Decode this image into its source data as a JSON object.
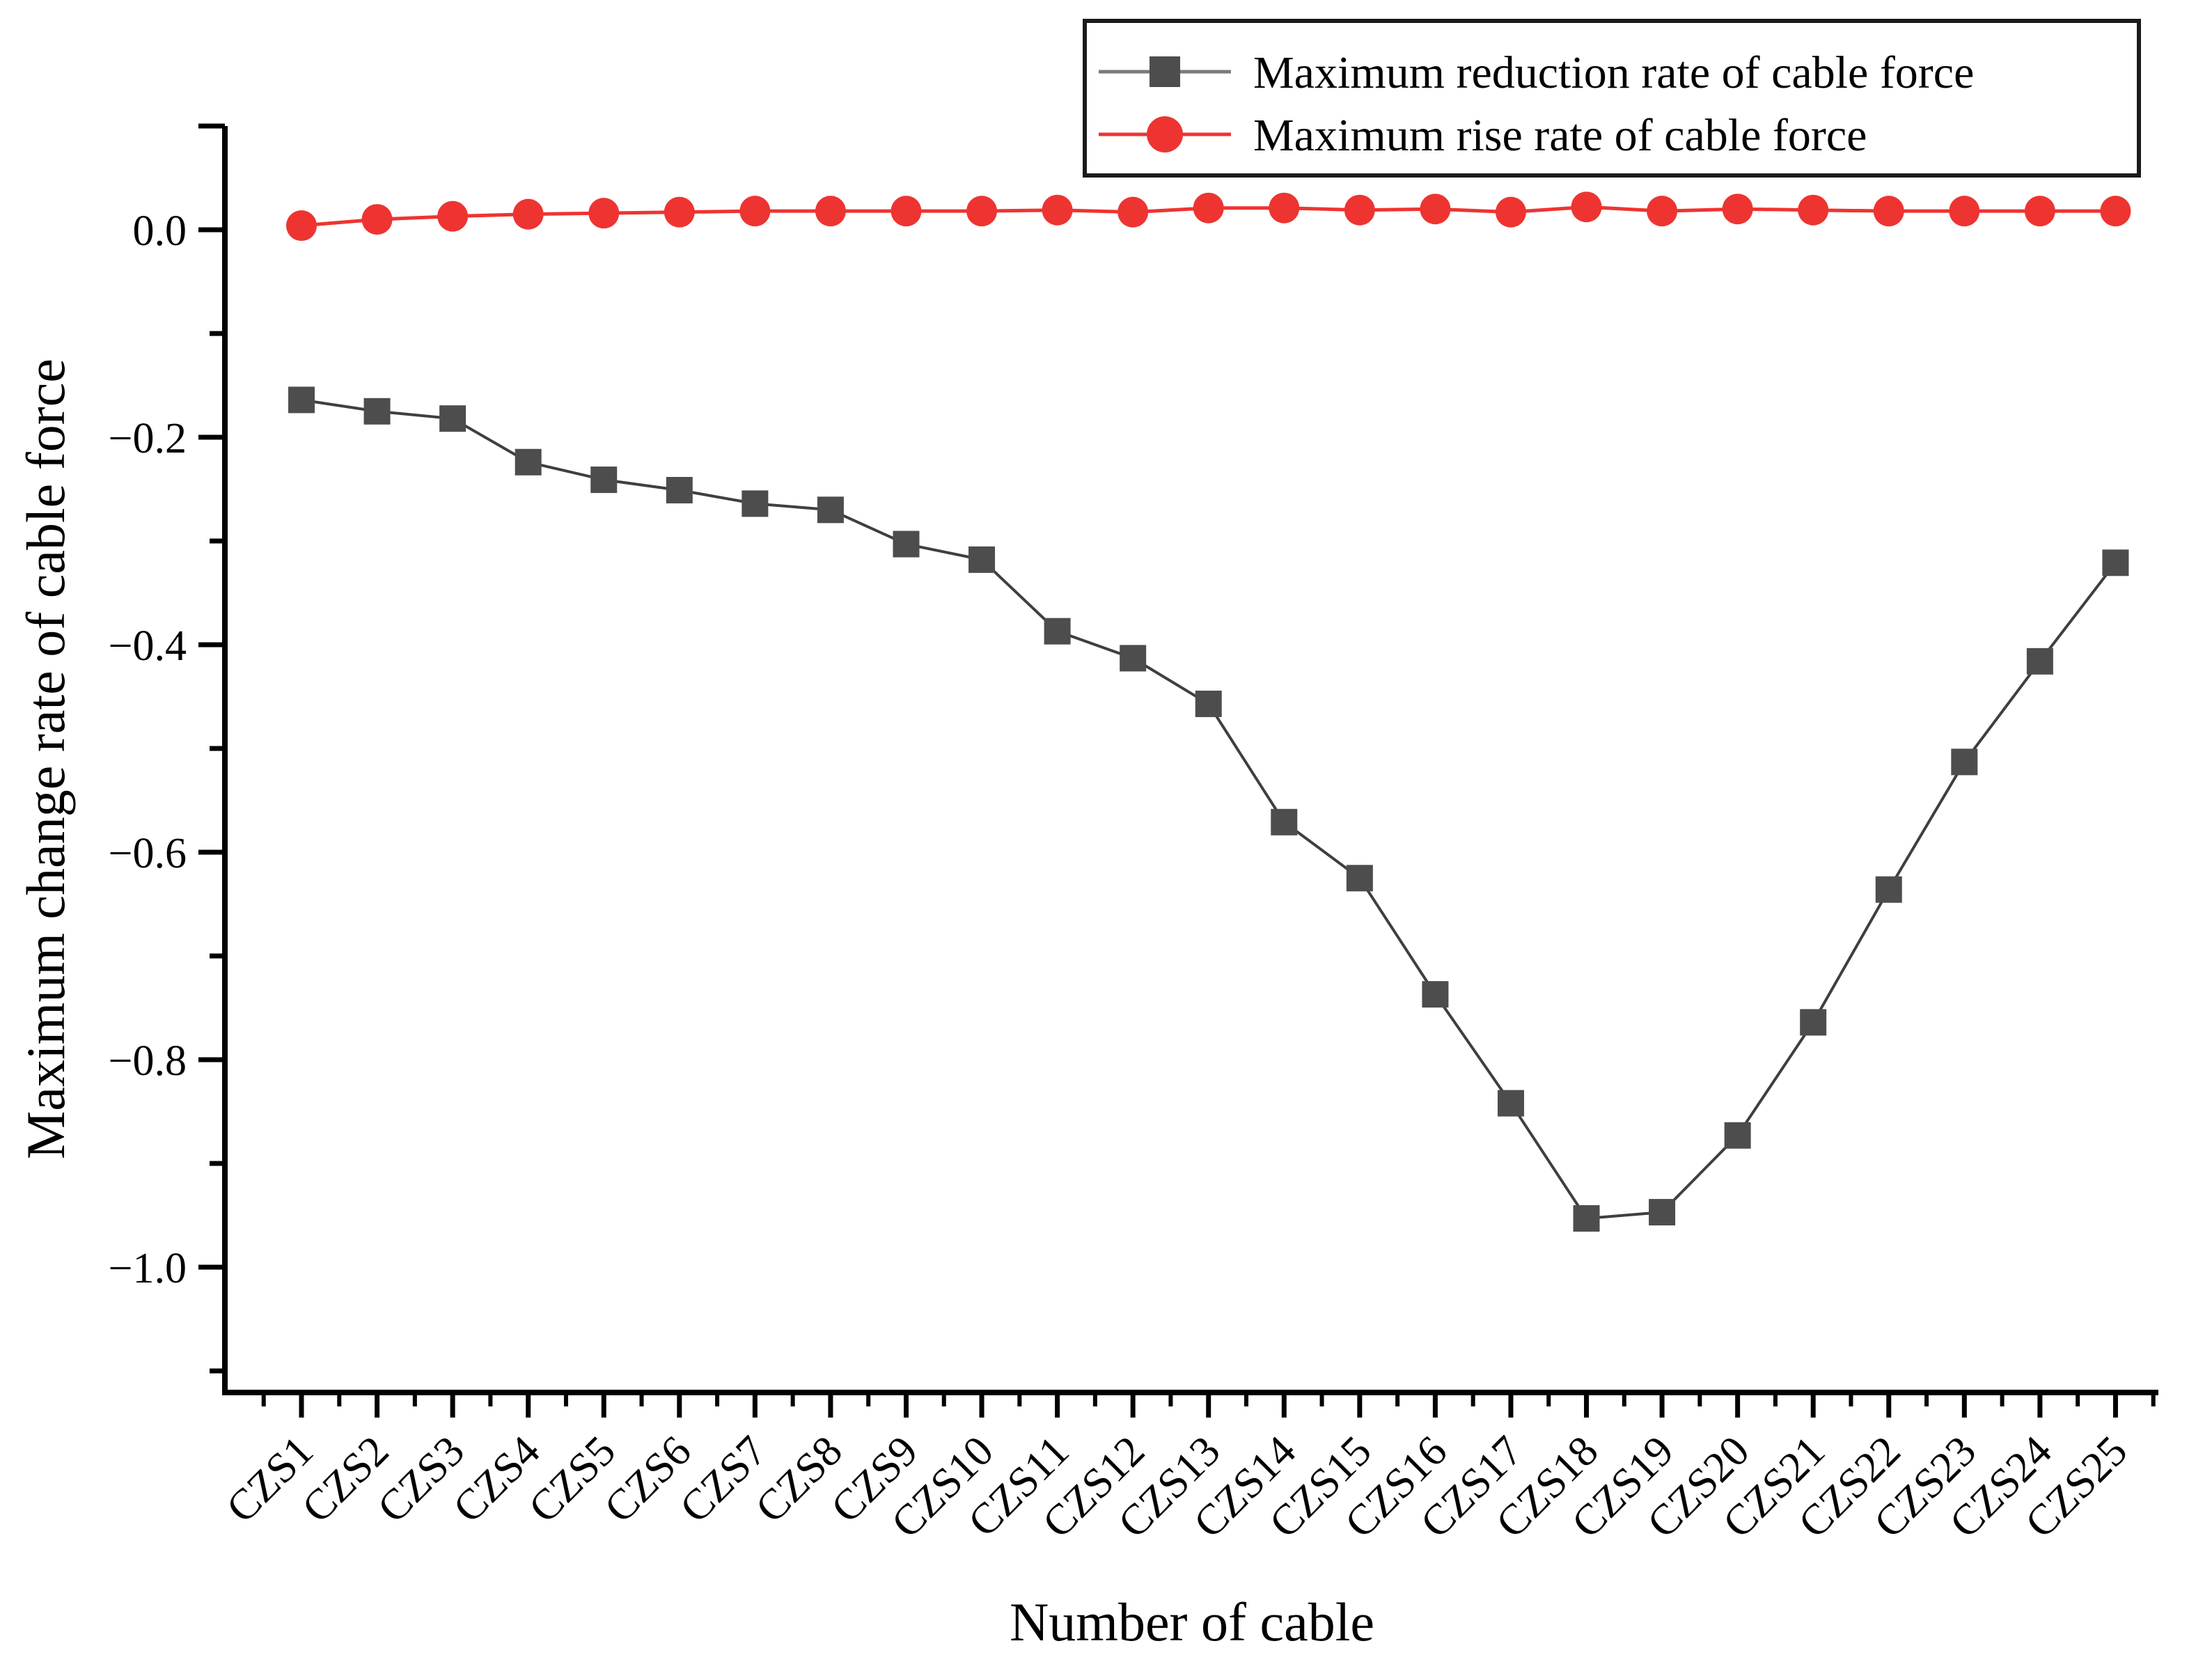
{
  "chart_data": {
    "type": "line",
    "title": "",
    "xlabel": "Number of cable",
    "ylabel": "Maximum change rate of cable force",
    "grid": false,
    "legend_position": "top-right",
    "categories": [
      "CZS1",
      "CZS2",
      "CZS3",
      "CZS4",
      "CZS5",
      "CZS6",
      "CZS7",
      "CZS8",
      "CZS9",
      "CZS10",
      "CZS11",
      "CZS12",
      "CZS13",
      "CZS14",
      "CZS15",
      "CZS16",
      "CZS17",
      "CZS18",
      "CZS19",
      "CZS20",
      "CZS21",
      "CZS22",
      "CZS23",
      "CZS24",
      "CZS25"
    ],
    "y_axis": {
      "min": -1.12,
      "max": 0.11,
      "major_step": 0.2,
      "minor_step": 0.1,
      "ticks": [
        {
          "v": 0,
          "t": "0.0"
        },
        {
          "v": -0.2,
          "t": "−0.2"
        },
        {
          "v": -0.4,
          "t": "−0.4"
        },
        {
          "v": -0.6,
          "t": "−0.6"
        },
        {
          "v": -0.8,
          "t": "−0.8"
        },
        {
          "v": -1.0,
          "t": "−1.0"
        }
      ]
    },
    "series": [
      {
        "name": "Maximum reduction rate of cable force",
        "marker": "square",
        "marker_color": "#4d4d4d",
        "line_color": "#3f3f3f",
        "values": [
          -0.164,
          -0.175,
          -0.182,
          -0.224,
          -0.241,
          -0.251,
          -0.264,
          -0.27,
          -0.303,
          -0.318,
          -0.387,
          -0.413,
          -0.457,
          -0.571,
          -0.625,
          -0.737,
          -0.842,
          -0.953,
          -0.947,
          -0.873,
          -0.764,
          -0.636,
          -0.513,
          -0.416,
          -0.321
        ]
      },
      {
        "name": "Maximum rise rate of cable force",
        "marker": "circle",
        "marker_color": "#ee3431",
        "line_color": "#ee3431",
        "values": [
          0.004,
          0.01,
          0.013,
          0.015,
          0.016,
          0.017,
          0.018,
          0.018,
          0.018,
          0.018,
          0.019,
          0.017,
          0.021,
          0.021,
          0.019,
          0.02,
          0.017,
          0.022,
          0.018,
          0.02,
          0.019,
          0.018,
          0.018,
          0.018,
          0.018
        ]
      }
    ]
  },
  "colors": {
    "axis": "#000000",
    "background": "#ffffff",
    "legend_border": "#1a1a1a"
  }
}
